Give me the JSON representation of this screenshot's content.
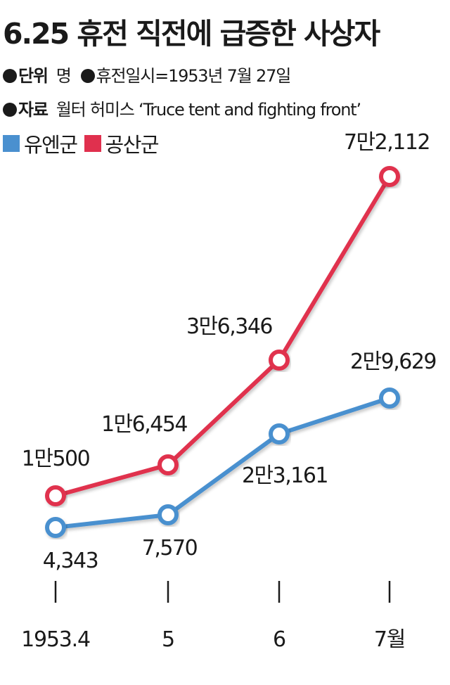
{
  "title": "6.25 휴전 직전에 급증한 사상자",
  "meta": {
    "unit_key": "단위",
    "unit_value": "명",
    "date_text": "휴전일시=1953년 7월 27일",
    "source_key": "자료",
    "source_value": "월터 허미스 ‘Truce tent and fighting front’"
  },
  "colors": {
    "un": "#4a90cf",
    "communist": "#e0304e"
  },
  "chart_data": {
    "type": "line",
    "title": "6.25 휴전 직전에 급증한 사상자",
    "xlabel": "",
    "ylabel": "",
    "categories": [
      "1953.4",
      "5",
      "6",
      "7월"
    ],
    "ylim": [
      0,
      80000
    ],
    "grid": false,
    "legend_position": "top-left",
    "series": [
      {
        "name": "유엔군",
        "color": "#4a90cf",
        "values": [
          4343,
          7570,
          23161,
          29629
        ],
        "labels": [
          "4,343",
          "7,570",
          "2만3,161",
          "2만9,629"
        ]
      },
      {
        "name": "공산군",
        "color": "#e0304e",
        "values": [
          10500,
          16454,
          36346,
          72112
        ],
        "labels": [
          "1만500",
          "1만6,454",
          "3만6,346",
          "7만2,112"
        ]
      }
    ]
  }
}
